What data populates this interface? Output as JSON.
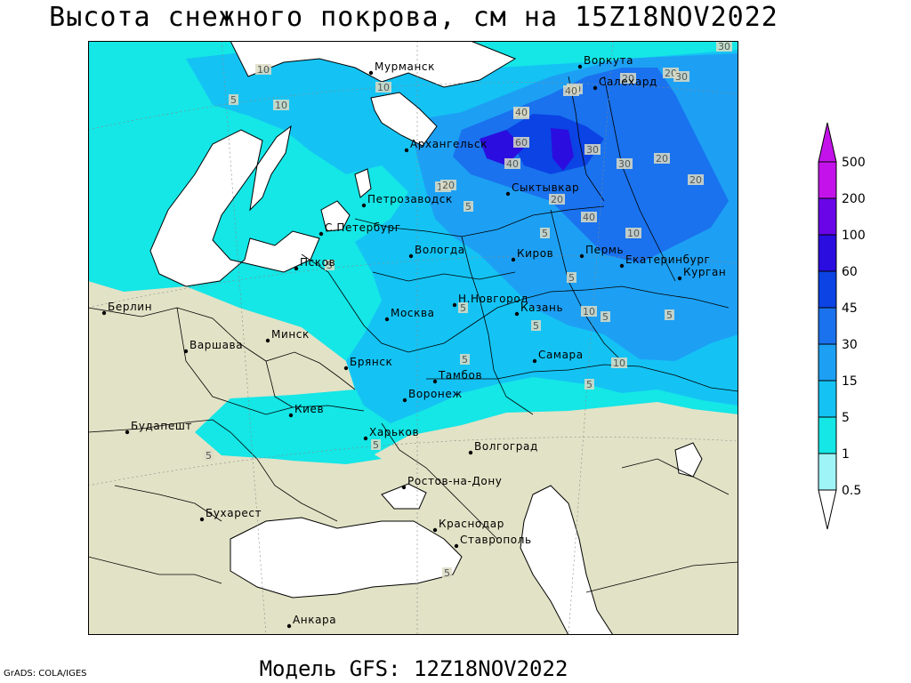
{
  "title": "Высота снежного покрова, см на 15Z18NOV2022",
  "subtitle": "Модель GFS: 12Z18NOV2022",
  "credit": "GrADS: COLA/IGES",
  "legend": {
    "levels": [
      "0.5",
      "1",
      "5",
      "15",
      "30",
      "45",
      "60",
      "100",
      "200",
      "500"
    ],
    "colors": [
      "#ffffff",
      "#9ff4f8",
      "#15e6e6",
      "#14c3f4",
      "#1da0f4",
      "#1a72ee",
      "#0b43e4",
      "#2b0de0",
      "#6a05e8",
      "#c413ea"
    ]
  },
  "colors": {
    "land": "#e2e2c6",
    "water": "#ffffff",
    "snow_light": "#15e6e6",
    "snow_mid": "#14c3f4",
    "snow_deep": "#1da0f4",
    "snow_heavy": "#1a72ee",
    "snow_max": "#2b0de0"
  },
  "cities": [
    {
      "name": "Мурманск"
    },
    {
      "name": "Воркута"
    },
    {
      "name": "Салехард"
    },
    {
      "name": "Архангельск"
    },
    {
      "name": "Сыктывкар"
    },
    {
      "name": "Петрозаводск"
    },
    {
      "name": "С.Петербург"
    },
    {
      "name": "Вологда"
    },
    {
      "name": "Киров"
    },
    {
      "name": "Пермь"
    },
    {
      "name": "Екатеринбург"
    },
    {
      "name": "Курган"
    },
    {
      "name": "Псков"
    },
    {
      "name": "Н.Новгород"
    },
    {
      "name": "Москва"
    },
    {
      "name": "Казань"
    },
    {
      "name": "Берлин"
    },
    {
      "name": "Минск"
    },
    {
      "name": "Варшава"
    },
    {
      "name": "Брянск"
    },
    {
      "name": "Тамбов"
    },
    {
      "name": "Самара"
    },
    {
      "name": "Киев"
    },
    {
      "name": "Воронеж"
    },
    {
      "name": "Будапешт"
    },
    {
      "name": "Харьков"
    },
    {
      "name": "Волгоград"
    },
    {
      "name": "Ростов-на-Дону"
    },
    {
      "name": "Бухарест"
    },
    {
      "name": "Краснодар"
    },
    {
      "name": "Ставрополь"
    },
    {
      "name": "Анкара"
    }
  ],
  "contour_labels": [
    "30",
    "20",
    "30",
    "10",
    "20",
    "40",
    "10",
    "40",
    "5",
    "10",
    "20",
    "40",
    "60",
    "30",
    "30",
    "20",
    "40",
    "20",
    "10",
    "20",
    "5",
    "20",
    "40",
    "10",
    "5",
    "5",
    "5",
    "5",
    "10",
    "5",
    "5",
    "5",
    "5",
    "10",
    "5",
    "5",
    "5",
    "5"
  ]
}
